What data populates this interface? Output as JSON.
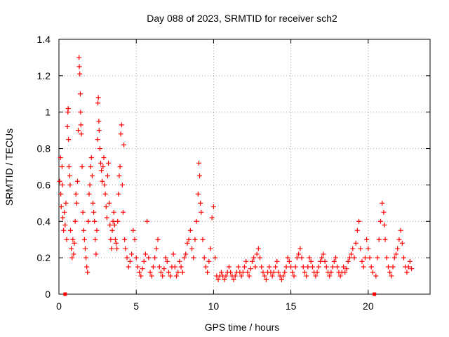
{
  "chart_data": {
    "type": "scatter",
    "title": "Day 088 of 2023, SRMTID for receiver sch2",
    "xlabel": "GPS time / hours",
    "ylabel": "SRMTID / TECUs",
    "xlim": [
      0,
      24
    ],
    "ylim": [
      0,
      1.4
    ],
    "xticks": [
      0,
      5,
      10,
      15,
      20
    ],
    "yticks": [
      0,
      0.2,
      0.4,
      0.6,
      0.8,
      1,
      1.2,
      1.4
    ],
    "xtick_labels": [
      "0",
      "5",
      "10",
      "15",
      "20"
    ],
    "ytick_labels": [
      "0",
      "0.2",
      "0.4",
      "0.6",
      "0.8",
      "1",
      "1.2",
      "1.4"
    ],
    "grid": true,
    "marker": "plus",
    "color": "#ff0000",
    "gap_markers": [
      0.4,
      20.4
    ],
    "series": [
      {
        "name": "SRMTID",
        "points": [
          [
            0.05,
            0.62
          ],
          [
            0.1,
            0.75
          ],
          [
            0.12,
            0.55
          ],
          [
            0.15,
            0.48
          ],
          [
            0.2,
            0.7
          ],
          [
            0.22,
            0.6
          ],
          [
            0.25,
            0.42
          ],
          [
            0.3,
            0.35
          ],
          [
            0.35,
            0.45
          ],
          [
            0.4,
            0.38
          ],
          [
            0.45,
            0.5
          ],
          [
            0.5,
            0.3
          ],
          [
            0.55,
            0.92
          ],
          [
            0.58,
            1.0
          ],
          [
            0.6,
            1.02
          ],
          [
            0.62,
            0.85
          ],
          [
            0.65,
            0.7
          ],
          [
            0.7,
            0.65
          ],
          [
            0.72,
            0.6
          ],
          [
            0.75,
            0.35
          ],
          [
            0.8,
            0.25
          ],
          [
            0.85,
            0.2
          ],
          [
            0.9,
            0.3
          ],
          [
            0.95,
            0.22
          ],
          [
            1.0,
            0.28
          ],
          [
            1.05,
            0.4
          ],
          [
            1.1,
            0.55
          ],
          [
            1.15,
            0.5
          ],
          [
            1.2,
            0.62
          ],
          [
            1.25,
            0.9
          ],
          [
            1.3,
            1.3
          ],
          [
            1.32,
            1.25
          ],
          [
            1.35,
            1.21
          ],
          [
            1.38,
            1.1
          ],
          [
            1.4,
            1.0
          ],
          [
            1.42,
            0.93
          ],
          [
            1.45,
            0.88
          ],
          [
            1.5,
            0.7
          ],
          [
            1.55,
            0.45
          ],
          [
            1.6,
            0.35
          ],
          [
            1.65,
            0.3
          ],
          [
            1.7,
            0.25
          ],
          [
            1.75,
            0.2
          ],
          [
            1.8,
            0.15
          ],
          [
            1.85,
            0.12
          ],
          [
            1.9,
            0.4
          ],
          [
            1.95,
            0.55
          ],
          [
            2.0,
            0.6
          ],
          [
            2.05,
            0.7
          ],
          [
            2.1,
            0.75
          ],
          [
            2.15,
            0.65
          ],
          [
            2.2,
            0.5
          ],
          [
            2.25,
            0.45
          ],
          [
            2.3,
            0.4
          ],
          [
            2.35,
            0.3
          ],
          [
            2.4,
            0.22
          ],
          [
            2.45,
            0.35
          ],
          [
            2.5,
            0.85
          ],
          [
            2.52,
            1.05
          ],
          [
            2.55,
            1.08
          ],
          [
            2.58,
            0.95
          ],
          [
            2.6,
            0.9
          ],
          [
            2.65,
            0.8
          ],
          [
            2.7,
            0.72
          ],
          [
            2.75,
            0.68
          ],
          [
            2.8,
            0.62
          ],
          [
            2.85,
            0.7
          ],
          [
            2.9,
            0.75
          ],
          [
            2.95,
            0.6
          ],
          [
            3.0,
            0.55
          ],
          [
            3.05,
            0.48
          ],
          [
            3.1,
            0.42
          ],
          [
            3.15,
            0.65
          ],
          [
            3.2,
            0.72
          ],
          [
            3.25,
            0.5
          ],
          [
            3.3,
            0.38
          ],
          [
            3.35,
            0.3
          ],
          [
            3.4,
            0.25
          ],
          [
            3.45,
            0.35
          ],
          [
            3.5,
            0.4
          ],
          [
            3.55,
            0.45
          ],
          [
            3.6,
            0.38
          ],
          [
            3.65,
            0.3
          ],
          [
            3.7,
            0.28
          ],
          [
            3.75,
            0.25
          ],
          [
            3.8,
            0.4
          ],
          [
            3.85,
            0.55
          ],
          [
            3.9,
            0.65
          ],
          [
            3.95,
            0.7
          ],
          [
            4.0,
            0.88
          ],
          [
            4.05,
            0.93
          ],
          [
            4.1,
            0.6
          ],
          [
            4.15,
            0.45
          ],
          [
            4.2,
            0.82
          ],
          [
            4.25,
            0.3
          ],
          [
            4.3,
            0.25
          ],
          [
            4.4,
            0.2
          ],
          [
            4.5,
            0.15
          ],
          [
            4.6,
            0.18
          ],
          [
            4.7,
            0.22
          ],
          [
            4.8,
            0.35
          ],
          [
            4.9,
            0.3
          ],
          [
            5.0,
            0.2
          ],
          [
            5.1,
            0.15
          ],
          [
            5.2,
            0.12
          ],
          [
            5.3,
            0.1
          ],
          [
            5.4,
            0.14
          ],
          [
            5.5,
            0.18
          ],
          [
            5.6,
            0.22
          ],
          [
            5.7,
            0.4
          ],
          [
            5.8,
            0.2
          ],
          [
            5.9,
            0.12
          ],
          [
            6.0,
            0.1
          ],
          [
            6.1,
            0.15
          ],
          [
            6.2,
            0.2
          ],
          [
            6.3,
            0.25
          ],
          [
            6.4,
            0.3
          ],
          [
            6.5,
            0.15
          ],
          [
            6.6,
            0.12
          ],
          [
            6.7,
            0.1
          ],
          [
            6.8,
            0.14
          ],
          [
            6.9,
            0.2
          ],
          [
            7.0,
            0.18
          ],
          [
            7.1,
            0.12
          ],
          [
            7.2,
            0.1
          ],
          [
            7.3,
            0.15
          ],
          [
            7.4,
            0.22
          ],
          [
            7.5,
            0.15
          ],
          [
            7.6,
            0.1
          ],
          [
            7.7,
            0.12
          ],
          [
            7.8,
            0.18
          ],
          [
            7.9,
            0.15
          ],
          [
            8.0,
            0.12
          ],
          [
            8.1,
            0.2
          ],
          [
            8.2,
            0.22
          ],
          [
            8.3,
            0.28
          ],
          [
            8.4,
            0.3
          ],
          [
            8.5,
            0.35
          ],
          [
            8.6,
            0.25
          ],
          [
            8.7,
            0.2
          ],
          [
            8.8,
            0.3
          ],
          [
            8.9,
            0.4
          ],
          [
            9.0,
            0.55
          ],
          [
            9.05,
            0.72
          ],
          [
            9.1,
            0.65
          ],
          [
            9.15,
            0.5
          ],
          [
            9.2,
            0.45
          ],
          [
            9.3,
            0.3
          ],
          [
            9.4,
            0.2
          ],
          [
            9.5,
            0.15
          ],
          [
            9.6,
            0.12
          ],
          [
            9.7,
            0.18
          ],
          [
            9.8,
            0.25
          ],
          [
            9.9,
            0.42
          ],
          [
            10.0,
            0.48
          ],
          [
            10.1,
            0.2
          ],
          [
            10.2,
            0.1
          ],
          [
            10.3,
            0.08
          ],
          [
            10.4,
            0.1
          ],
          [
            10.5,
            0.12
          ],
          [
            10.6,
            0.1
          ],
          [
            10.7,
            0.08
          ],
          [
            10.8,
            0.1
          ],
          [
            10.9,
            0.12
          ],
          [
            11.0,
            0.15
          ],
          [
            11.1,
            0.12
          ],
          [
            11.2,
            0.1
          ],
          [
            11.3,
            0.08
          ],
          [
            11.4,
            0.1
          ],
          [
            11.5,
            0.12
          ],
          [
            11.6,
            0.15
          ],
          [
            11.7,
            0.12
          ],
          [
            11.8,
            0.1
          ],
          [
            11.9,
            0.12
          ],
          [
            12.0,
            0.15
          ],
          [
            12.1,
            0.18
          ],
          [
            12.2,
            0.12
          ],
          [
            12.3,
            0.1
          ],
          [
            12.4,
            0.14
          ],
          [
            12.5,
            0.18
          ],
          [
            12.6,
            0.2
          ],
          [
            12.7,
            0.15
          ],
          [
            12.8,
            0.22
          ],
          [
            12.9,
            0.25
          ],
          [
            13.0,
            0.2
          ],
          [
            13.1,
            0.15
          ],
          [
            13.2,
            0.12
          ],
          [
            13.3,
            0.1
          ],
          [
            13.4,
            0.08
          ],
          [
            13.5,
            0.12
          ],
          [
            13.6,
            0.15
          ],
          [
            13.7,
            0.12
          ],
          [
            13.8,
            0.1
          ],
          [
            13.9,
            0.12
          ],
          [
            14.0,
            0.15
          ],
          [
            14.1,
            0.18
          ],
          [
            14.2,
            0.12
          ],
          [
            14.3,
            0.1
          ],
          [
            14.4,
            0.08
          ],
          [
            14.5,
            0.1
          ],
          [
            14.6,
            0.12
          ],
          [
            14.7,
            0.15
          ],
          [
            14.8,
            0.2
          ],
          [
            14.9,
            0.18
          ],
          [
            15.0,
            0.15
          ],
          [
            15.1,
            0.12
          ],
          [
            15.2,
            0.1
          ],
          [
            15.3,
            0.15
          ],
          [
            15.4,
            0.2
          ],
          [
            15.5,
            0.22
          ],
          [
            15.6,
            0.25
          ],
          [
            15.7,
            0.2
          ],
          [
            15.8,
            0.15
          ],
          [
            15.9,
            0.12
          ],
          [
            16.0,
            0.1
          ],
          [
            16.1,
            0.15
          ],
          [
            16.2,
            0.2
          ],
          [
            16.3,
            0.18
          ],
          [
            16.4,
            0.15
          ],
          [
            16.5,
            0.12
          ],
          [
            16.6,
            0.1
          ],
          [
            16.7,
            0.12
          ],
          [
            16.8,
            0.15
          ],
          [
            16.9,
            0.18
          ],
          [
            17.0,
            0.2
          ],
          [
            17.1,
            0.22
          ],
          [
            17.2,
            0.18
          ],
          [
            17.3,
            0.15
          ],
          [
            17.4,
            0.12
          ],
          [
            17.5,
            0.1
          ],
          [
            17.6,
            0.12
          ],
          [
            17.7,
            0.15
          ],
          [
            17.8,
            0.18
          ],
          [
            17.9,
            0.2
          ],
          [
            18.0,
            0.15
          ],
          [
            18.1,
            0.12
          ],
          [
            18.2,
            0.1
          ],
          [
            18.3,
            0.12
          ],
          [
            18.4,
            0.15
          ],
          [
            18.5,
            0.12
          ],
          [
            18.6,
            0.14
          ],
          [
            18.7,
            0.18
          ],
          [
            18.8,
            0.2
          ],
          [
            18.9,
            0.22
          ],
          [
            19.0,
            0.25
          ],
          [
            19.1,
            0.2
          ],
          [
            19.2,
            0.28
          ],
          [
            19.3,
            0.35
          ],
          [
            19.4,
            0.4
          ],
          [
            19.5,
            0.25
          ],
          [
            19.6,
            0.18
          ],
          [
            19.7,
            0.15
          ],
          [
            19.8,
            0.2
          ],
          [
            19.9,
            0.3
          ],
          [
            20.0,
            0.25
          ],
          [
            20.1,
            0.2
          ],
          [
            20.2,
            0.15
          ],
          [
            20.3,
            0.12
          ],
          [
            20.5,
            0.1
          ],
          [
            20.6,
            0.2
          ],
          [
            20.7,
            0.3
          ],
          [
            20.8,
            0.4
          ],
          [
            20.9,
            0.5
          ],
          [
            21.0,
            0.45
          ],
          [
            21.05,
            0.38
          ],
          [
            21.1,
            0.3
          ],
          [
            21.2,
            0.2
          ],
          [
            21.3,
            0.15
          ],
          [
            21.4,
            0.12
          ],
          [
            21.5,
            0.1
          ],
          [
            21.6,
            0.15
          ],
          [
            21.7,
            0.2
          ],
          [
            21.8,
            0.22
          ],
          [
            21.9,
            0.25
          ],
          [
            22.0,
            0.3
          ],
          [
            22.1,
            0.35
          ],
          [
            22.2,
            0.28
          ],
          [
            22.3,
            0.2
          ],
          [
            22.4,
            0.15
          ],
          [
            22.5,
            0.12
          ],
          [
            22.6,
            0.15
          ],
          [
            22.7,
            0.18
          ],
          [
            22.8,
            0.14
          ]
        ]
      }
    ]
  }
}
